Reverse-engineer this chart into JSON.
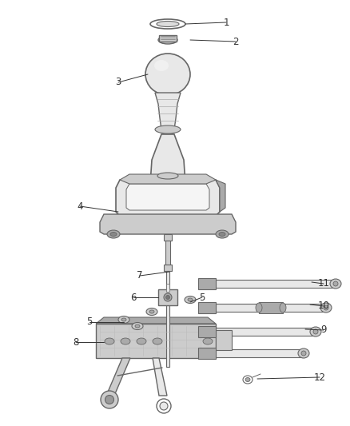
{
  "background_color": "#ffffff",
  "fig_width": 4.38,
  "fig_height": 5.33,
  "dpi": 100,
  "line_color": "#666666",
  "text_color": "#333333",
  "light_gray": "#e8e8e8",
  "mid_gray": "#cccccc",
  "dark_gray": "#aaaaaa",
  "font_size": 8.5
}
